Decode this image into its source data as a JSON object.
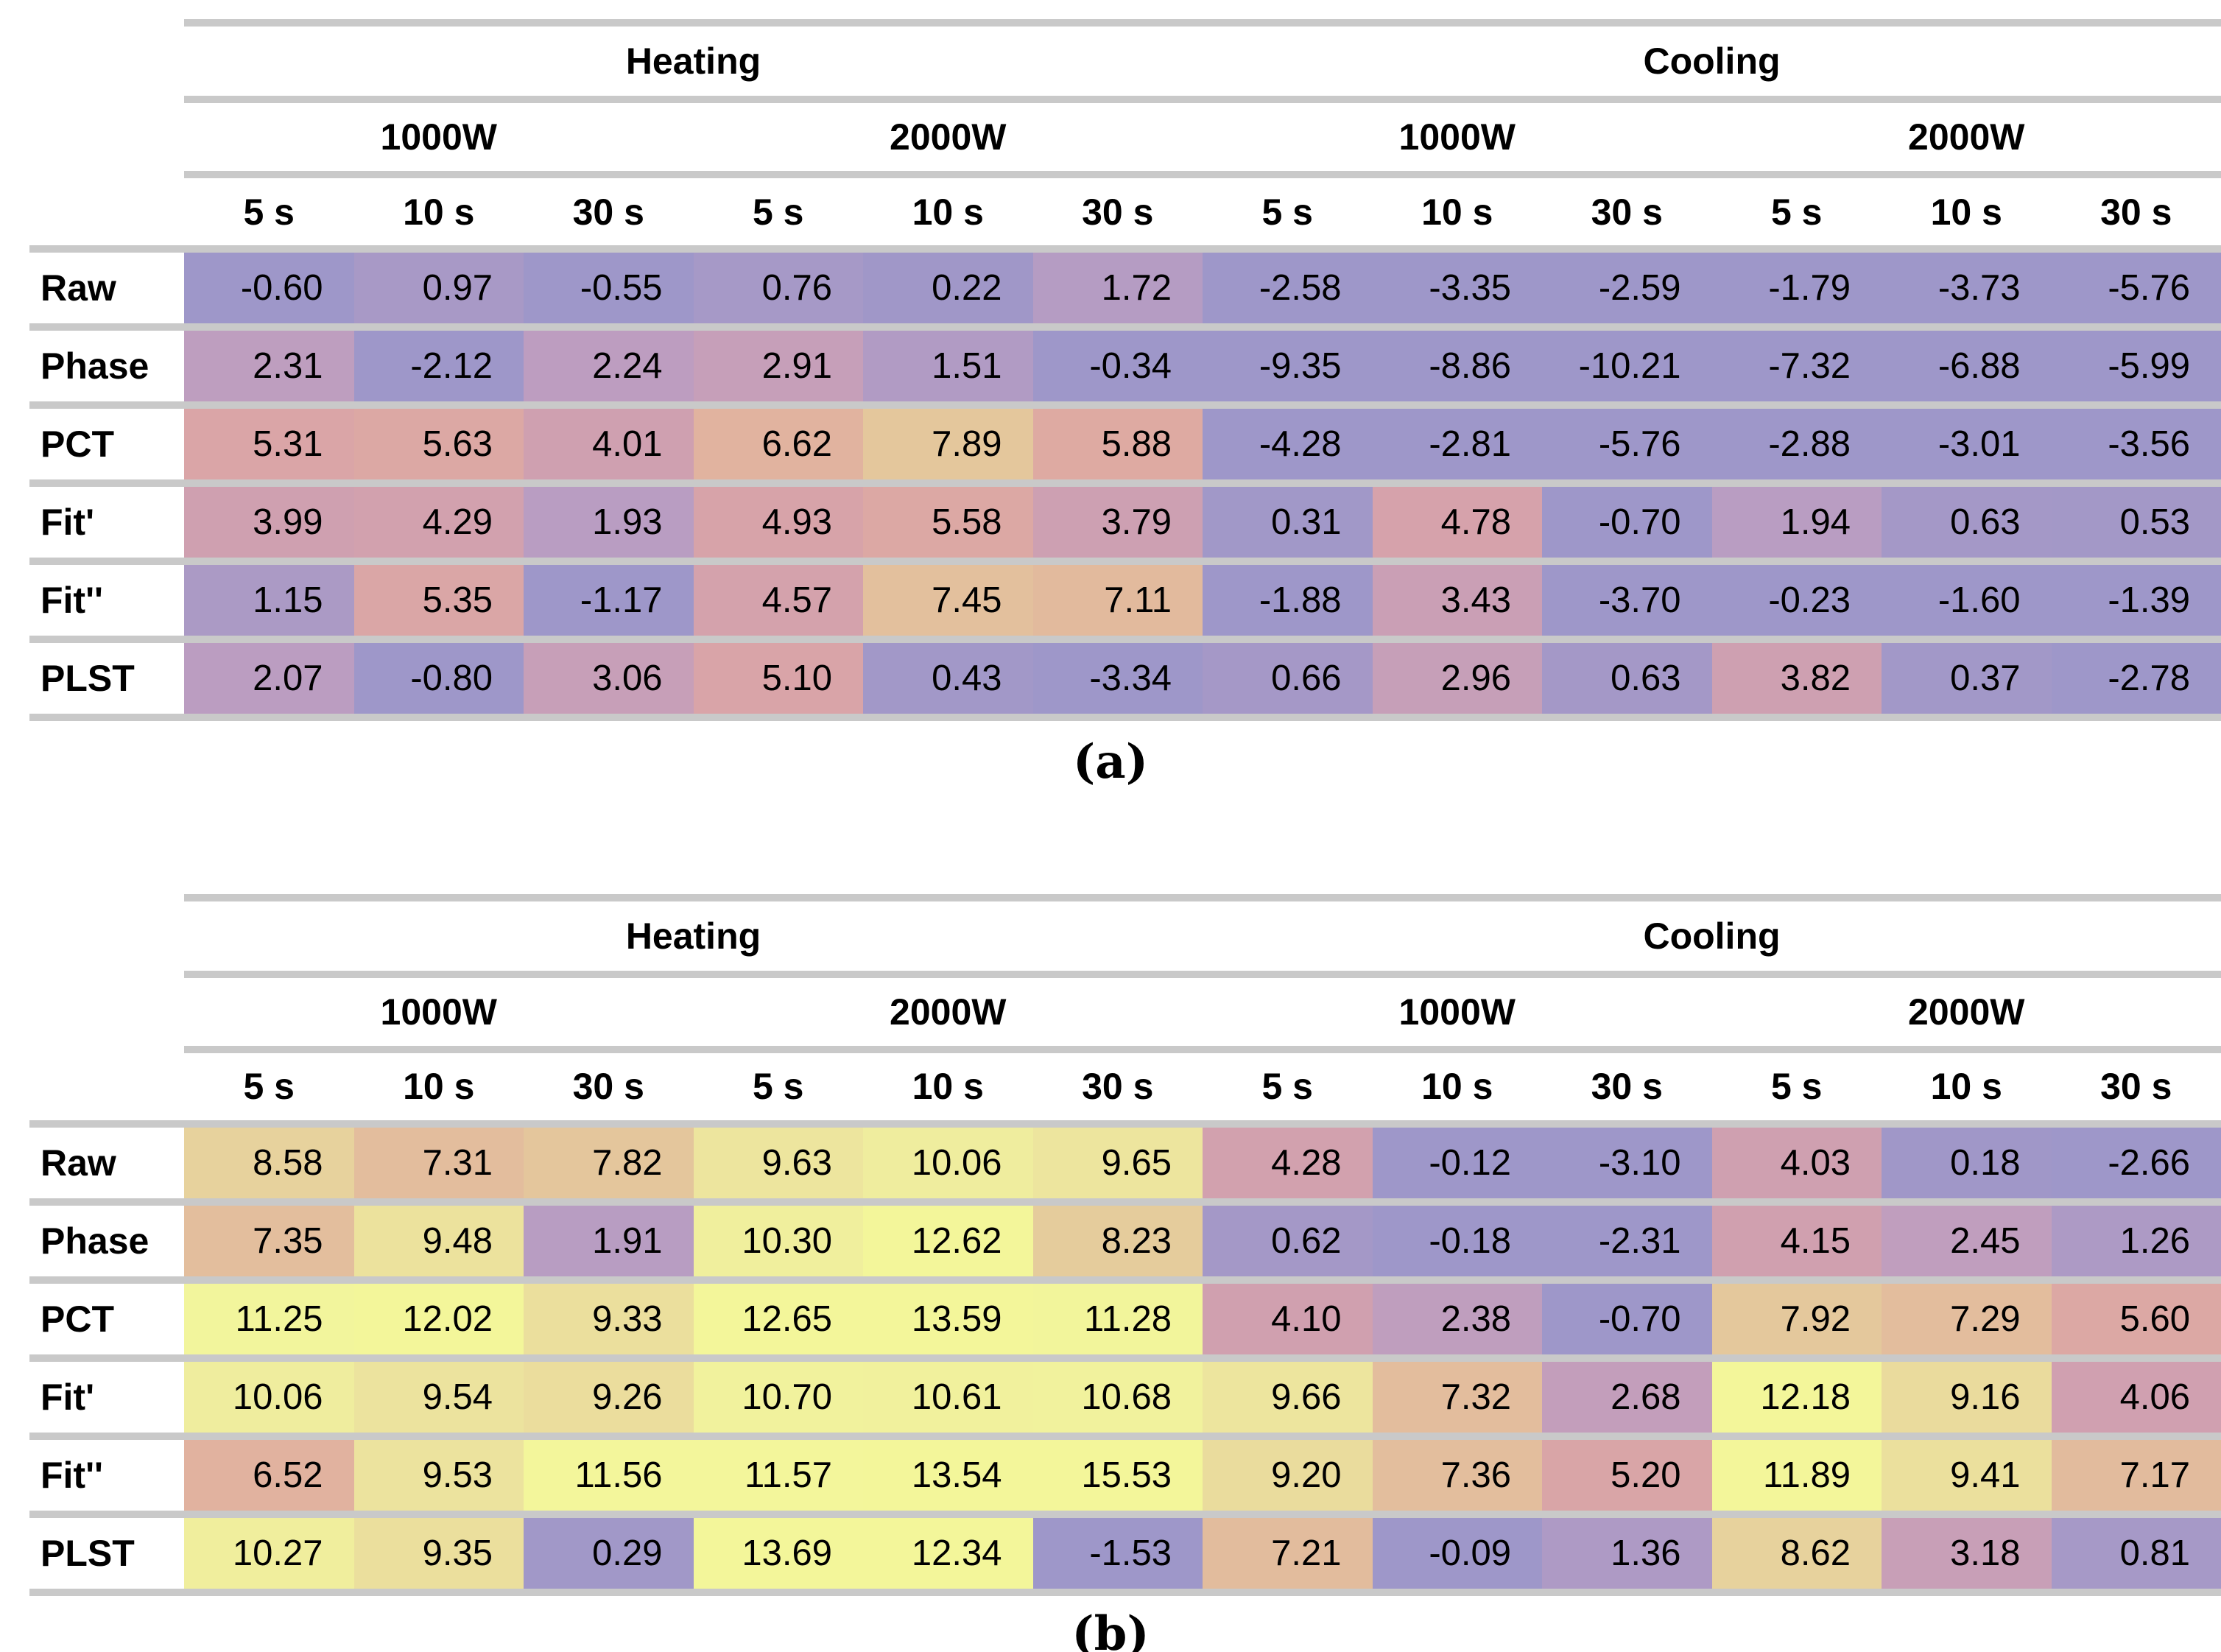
{
  "figure": {
    "caption_a": "(a)",
    "caption_b": "(b)"
  },
  "colormap": {
    "description": "cell background color derived from cell value; clamped below first stop and above last stop",
    "rule_color": "#c9c9c9",
    "text_color": "#000000",
    "stops": [
      [
        0,
        "#9e97c9"
      ],
      [
        1,
        "#a899c6"
      ],
      [
        2,
        "#ba9dc2"
      ],
      [
        3,
        "#c79fb8"
      ],
      [
        4,
        "#cfa0b0"
      ],
      [
        5,
        "#d8a3a9"
      ],
      [
        6,
        "#dfaba1"
      ],
      [
        7,
        "#e2b89d"
      ],
      [
        8,
        "#e4c99c"
      ],
      [
        9,
        "#e9d89d"
      ],
      [
        10,
        "#efec9e"
      ],
      [
        11,
        "#f2f59c"
      ],
      [
        12,
        "#f3f69a"
      ]
    ]
  },
  "chart_data": [
    {
      "type": "heatmap",
      "caption": "(a)",
      "column_groups": [
        "Heating",
        "Cooling"
      ],
      "power_levels": [
        "1000W",
        "2000W",
        "1000W",
        "2000W"
      ],
      "pulse_times": [
        "5 s",
        "10 s",
        "30 s",
        "5 s",
        "10 s",
        "30 s",
        "5 s",
        "10 s",
        "30 s",
        "5 s",
        "10 s",
        "30 s"
      ],
      "rows": [
        {
          "label": "Raw",
          "values": [
            -0.6,
            0.97,
            -0.55,
            0.76,
            0.22,
            1.72,
            -2.58,
            -3.35,
            -2.59,
            -1.79,
            -3.73,
            -5.76
          ]
        },
        {
          "label": "Phase",
          "values": [
            2.31,
            -2.12,
            2.24,
            2.91,
            1.51,
            -0.34,
            -9.35,
            -8.86,
            -10.21,
            -7.32,
            -6.88,
            -5.99
          ]
        },
        {
          "label": "PCT",
          "values": [
            5.31,
            5.63,
            4.01,
            6.62,
            7.89,
            5.88,
            -4.28,
            -2.81,
            -5.76,
            -2.88,
            -3.01,
            -3.56
          ]
        },
        {
          "label": "Fit'",
          "values": [
            3.99,
            4.29,
            1.93,
            4.93,
            5.58,
            3.79,
            0.31,
            4.78,
            -0.7,
            1.94,
            0.63,
            0.53
          ]
        },
        {
          "label": "Fit''",
          "values": [
            1.15,
            5.35,
            -1.17,
            4.57,
            7.45,
            7.11,
            -1.88,
            3.43,
            -3.7,
            -0.23,
            -1.6,
            -1.39
          ]
        },
        {
          "label": "PLST",
          "values": [
            2.07,
            -0.8,
            3.06,
            5.1,
            0.43,
            -3.34,
            0.66,
            2.96,
            0.63,
            3.82,
            0.37,
            -2.78
          ]
        }
      ]
    },
    {
      "type": "heatmap",
      "caption": "(b)",
      "column_groups": [
        "Heating",
        "Cooling"
      ],
      "power_levels": [
        "1000W",
        "2000W",
        "1000W",
        "2000W"
      ],
      "pulse_times": [
        "5 s",
        "10 s",
        "30 s",
        "5 s",
        "10 s",
        "30 s",
        "5 s",
        "10 s",
        "30 s",
        "5 s",
        "10 s",
        "30 s"
      ],
      "rows": [
        {
          "label": "Raw",
          "values": [
            8.58,
            7.31,
            7.82,
            9.63,
            10.06,
            9.65,
            4.28,
            -0.12,
            -3.1,
            4.03,
            0.18,
            -2.66
          ]
        },
        {
          "label": "Phase",
          "values": [
            7.35,
            9.48,
            1.91,
            10.3,
            12.62,
            8.23,
            0.62,
            -0.18,
            -2.31,
            4.15,
            2.45,
            1.26
          ]
        },
        {
          "label": "PCT",
          "values": [
            11.25,
            12.02,
            9.33,
            12.65,
            13.59,
            11.28,
            4.1,
            2.38,
            -0.7,
            7.92,
            7.29,
            5.6
          ]
        },
        {
          "label": "Fit'",
          "values": [
            10.06,
            9.54,
            9.26,
            10.7,
            10.61,
            10.68,
            9.66,
            7.32,
            2.68,
            12.18,
            9.16,
            4.06
          ]
        },
        {
          "label": "Fit''",
          "values": [
            6.52,
            9.53,
            11.56,
            11.57,
            13.54,
            15.53,
            9.2,
            7.36,
            5.2,
            11.89,
            9.41,
            7.17
          ]
        },
        {
          "label": "PLST",
          "values": [
            10.27,
            9.35,
            0.29,
            13.69,
            12.34,
            -1.53,
            7.21,
            -0.09,
            1.36,
            8.62,
            3.18,
            0.81
          ]
        }
      ]
    }
  ]
}
